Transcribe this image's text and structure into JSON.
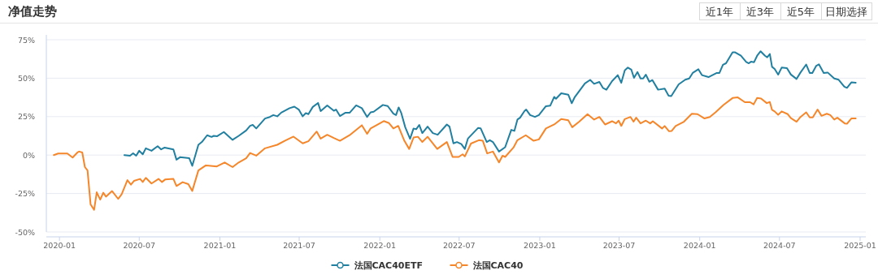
{
  "chart_data": {
    "type": "line",
    "title": "净值走势",
    "annotations": [
      "近1年",
      "近3年",
      "近5年",
      "日期选择"
    ],
    "xlim": [
      "2019-12-02",
      "2025-01-14"
    ],
    "xticks": [
      "2020-01",
      "2020-07",
      "2021-01",
      "2021-07",
      "2022-01",
      "2022-07",
      "2023-01",
      "2023-07",
      "2024-01",
      "2024-07",
      "2025-01"
    ],
    "ylim": [
      -50,
      75
    ],
    "yticks": [
      {
        "value": -50,
        "label": "-50%"
      },
      {
        "value": -25,
        "label": "-25%"
      },
      {
        "value": 0,
        "label": "0%"
      },
      {
        "value": 25,
        "label": "25%"
      },
      {
        "value": 50,
        "label": "50%"
      },
      {
        "value": 75,
        "label": "75%"
      }
    ],
    "grid": "y",
    "legend": "bottom",
    "marker": "none",
    "line_style": "solid",
    "series": [
      {
        "name": "法国CAC40ETF",
        "color": "#217fa0",
        "x": [
          "2020-05-28",
          "2020-06-10",
          "2020-06-17",
          "2020-06-24",
          "2020-07-01",
          "2020-07-09",
          "2020-07-16",
          "2020-07-29",
          "2020-08-12",
          "2020-08-20",
          "2020-08-28",
          "2020-09-17",
          "2020-09-24",
          "2020-10-02",
          "2020-10-23",
          "2020-10-30",
          "2020-11-13",
          "2020-11-21",
          "2020-12-03",
          "2020-12-13",
          "2020-12-18",
          "2020-12-26",
          "2021-01-10",
          "2021-01-30",
          "2021-02-13",
          "2021-03-02",
          "2021-03-11",
          "2021-03-17",
          "2021-03-25",
          "2021-04-14",
          "2021-04-25",
          "2021-05-03",
          "2021-05-12",
          "2021-05-21",
          "2021-06-09",
          "2021-06-20",
          "2021-06-30",
          "2021-07-09",
          "2021-07-16",
          "2021-07-22",
          "2021-08-01",
          "2021-08-13",
          "2021-08-19",
          "2021-09-03",
          "2021-09-18",
          "2021-09-23",
          "2021-10-02",
          "2021-10-14",
          "2021-10-24",
          "2021-11-08",
          "2021-11-21",
          "2021-12-03",
          "2021-12-11",
          "2021-12-18",
          "2022-01-08",
          "2022-01-19",
          "2022-02-01",
          "2022-02-07",
          "2022-02-13",
          "2022-02-19",
          "2022-02-28",
          "2022-03-11",
          "2022-03-19",
          "2022-03-25",
          "2022-04-01",
          "2022-04-08",
          "2022-04-20",
          "2022-05-02",
          "2022-05-13",
          "2022-06-03",
          "2022-06-09",
          "2022-06-18",
          "2022-06-26",
          "2022-07-06",
          "2022-07-14",
          "2022-07-21",
          "2022-08-13",
          "2022-08-19",
          "2022-09-02",
          "2022-09-09",
          "2022-09-16",
          "2022-09-30",
          "2022-10-14",
          "2022-10-28",
          "2022-11-04",
          "2022-11-11",
          "2022-11-17",
          "2022-11-27",
          "2022-12-01",
          "2022-12-10",
          "2022-12-21",
          "2022-12-30",
          "2023-01-15",
          "2023-01-25",
          "2023-02-03",
          "2023-02-07",
          "2023-02-19",
          "2023-03-07",
          "2023-03-15",
          "2023-03-22",
          "2023-04-14",
          "2023-04-26",
          "2023-05-05",
          "2023-05-17",
          "2023-05-25",
          "2023-06-02",
          "2023-06-15",
          "2023-06-28",
          "2023-07-06",
          "2023-07-14",
          "2023-07-21",
          "2023-07-29",
          "2023-08-04",
          "2023-08-12",
          "2023-08-19",
          "2023-08-25",
          "2023-08-31",
          "2023-09-08",
          "2023-09-15",
          "2023-09-28",
          "2023-10-13",
          "2023-10-22",
          "2023-10-28",
          "2023-11-14",
          "2023-11-29",
          "2023-12-08",
          "2023-12-16",
          "2023-12-29",
          "2024-01-06",
          "2024-01-21",
          "2024-02-09",
          "2024-02-15",
          "2024-02-23",
          "2024-03-01",
          "2024-03-16",
          "2024-03-22",
          "2024-04-04",
          "2024-04-16",
          "2024-04-22",
          "2024-04-27",
          "2024-05-04",
          "2024-05-11",
          "2024-05-19",
          "2024-05-29",
          "2024-06-03",
          "2024-06-09",
          "2024-06-14",
          "2024-06-20",
          "2024-06-28",
          "2024-07-06",
          "2024-07-18",
          "2024-07-27",
          "2024-08-09",
          "2024-08-18",
          "2024-08-31",
          "2024-09-08",
          "2024-09-14",
          "2024-09-23",
          "2024-09-29",
          "2024-10-10",
          "2024-10-19",
          "2024-11-03",
          "2024-11-13",
          "2024-11-26",
          "2024-12-02",
          "2024-12-12",
          "2024-12-22"
        ],
        "values": [
          0,
          -0.4,
          1.2,
          -0.4,
          2.8,
          0.5,
          4.4,
          2.8,
          5.8,
          3.7,
          4.9,
          3.7,
          -3,
          -1.4,
          -2,
          -7,
          6.7,
          8.5,
          12.9,
          11.8,
          12.5,
          12.3,
          15,
          9.9,
          12.5,
          16,
          19,
          19.6,
          17.3,
          23.8,
          24.8,
          26,
          25.2,
          27.6,
          30.5,
          31.5,
          29.6,
          25.2,
          27.3,
          26.6,
          31.3,
          33.9,
          28.6,
          32.3,
          28.8,
          29.6,
          25.4,
          27.5,
          27.5,
          32.3,
          30.5,
          24.8,
          27.8,
          28.2,
          32.6,
          31.9,
          26.9,
          26,
          31,
          27.3,
          18.1,
          10.6,
          17.3,
          16.8,
          19.6,
          14.3,
          18.5,
          14.3,
          13.2,
          19.9,
          18.5,
          7.6,
          8.5,
          7.2,
          4,
          10.7,
          17.6,
          17.4,
          8.5,
          9.7,
          8.5,
          2.3,
          5.1,
          16.4,
          15.7,
          23.1,
          24.3,
          28.6,
          29.6,
          26,
          24.8,
          26,
          31.8,
          32.2,
          37.8,
          36.6,
          40.2,
          39.3,
          33.7,
          37.8,
          46.6,
          48.9,
          46.3,
          47.6,
          43.7,
          42.5,
          48.1,
          52,
          47,
          55.1,
          56.9,
          55.5,
          50.2,
          54,
          49.8,
          49.8,
          52.3,
          47.7,
          48.8,
          42.5,
          43.2,
          38.6,
          38.3,
          46,
          49,
          49.8,
          53.4,
          55.8,
          52,
          50.7,
          53.4,
          53.4,
          58.7,
          59.7,
          66.8,
          66.8,
          64.6,
          60.6,
          59.7,
          60.7,
          60.4,
          64.6,
          67.5,
          64.6,
          63.6,
          65.7,
          57.4,
          56,
          52.3,
          56.9,
          56.5,
          52.4,
          49.5,
          53.7,
          58.9,
          53.4,
          53.4,
          58.1,
          59,
          53.4,
          53.7,
          49.8,
          49,
          44.5,
          43.7,
          47.3,
          47.1
        ]
      },
      {
        "name": "法国CAC40",
        "color": "#f5862a",
        "x": [
          "2019-12-19",
          "2019-12-29",
          "2020-01-19",
          "2020-01-31",
          "2020-02-11",
          "2020-02-15",
          "2020-02-22",
          "2020-02-28",
          "2020-03-05",
          "2020-03-12",
          "2020-03-20",
          "2020-03-26",
          "2020-04-03",
          "2020-04-10",
          "2020-04-16",
          "2020-04-30",
          "2020-05-14",
          "2020-05-22",
          "2020-06-04",
          "2020-06-12",
          "2020-06-19",
          "2020-07-03",
          "2020-07-09",
          "2020-07-16",
          "2020-07-29",
          "2020-08-14",
          "2020-08-22",
          "2020-08-29",
          "2020-09-17",
          "2020-09-24",
          "2020-10-08",
          "2020-10-21",
          "2020-10-30",
          "2020-11-13",
          "2020-11-30",
          "2020-12-25",
          "2021-01-12",
          "2021-01-30",
          "2021-02-13",
          "2021-03-02",
          "2021-03-11",
          "2021-03-25",
          "2021-04-14",
          "2021-05-12",
          "2021-05-30",
          "2021-06-18",
          "2021-07-09",
          "2021-07-22",
          "2021-08-10",
          "2021-08-19",
          "2021-09-03",
          "2021-09-18",
          "2021-10-02",
          "2021-10-24",
          "2021-11-21",
          "2021-12-03",
          "2021-12-11",
          "2022-01-10",
          "2022-01-22",
          "2022-02-01",
          "2022-02-12",
          "2022-02-26",
          "2022-03-09",
          "2022-03-19",
          "2022-03-29",
          "2022-04-08",
          "2022-04-20",
          "2022-05-12",
          "2022-06-03",
          "2022-06-16",
          "2022-06-30",
          "2022-07-09",
          "2022-07-14",
          "2022-07-28",
          "2022-08-15",
          "2022-08-24",
          "2022-09-03",
          "2022-09-16",
          "2022-09-30",
          "2022-10-08",
          "2022-10-14",
          "2022-11-02",
          "2022-11-11",
          "2022-11-30",
          "2022-12-18",
          "2022-12-30",
          "2023-01-15",
          "2023-02-03",
          "2023-02-19",
          "2023-03-07",
          "2023-03-16",
          "2023-04-01",
          "2023-04-20",
          "2023-05-05",
          "2023-05-17",
          "2023-05-30",
          "2023-06-15",
          "2023-06-24",
          "2023-06-30",
          "2023-07-06",
          "2023-07-14",
          "2023-07-27",
          "2023-08-03",
          "2023-08-09",
          "2023-08-19",
          "2023-08-31",
          "2023-09-10",
          "2023-09-16",
          "2023-10-07",
          "2023-10-13",
          "2023-10-23",
          "2023-10-29",
          "2023-11-07",
          "2023-11-26",
          "2023-12-14",
          "2023-12-27",
          "2024-01-12",
          "2024-01-24",
          "2024-02-06",
          "2024-02-24",
          "2024-03-16",
          "2024-03-28",
          "2024-04-13",
          "2024-04-25",
          "2024-05-03",
          "2024-05-11",
          "2024-05-20",
          "2024-06-02",
          "2024-06-09",
          "2024-06-14",
          "2024-06-20",
          "2024-06-28",
          "2024-07-06",
          "2024-07-20",
          "2024-07-27",
          "2024-08-09",
          "2024-08-18",
          "2024-08-31",
          "2024-09-08",
          "2024-09-15",
          "2024-09-26",
          "2024-10-05",
          "2024-10-17",
          "2024-10-25",
          "2024-11-03",
          "2024-11-10",
          "2024-11-27",
          "2024-12-02",
          "2024-12-12",
          "2024-12-22"
        ],
        "values": [
          0,
          1,
          1,
          -1.6,
          1.7,
          2.3,
          1.7,
          -7.8,
          -10,
          -32.1,
          -35.6,
          -24.2,
          -29,
          -24.5,
          -27,
          -23.4,
          -28.5,
          -25.4,
          -16.3,
          -19.2,
          -16.8,
          -15.5,
          -17.5,
          -14.8,
          -18.5,
          -15.5,
          -17.5,
          -15.9,
          -15.5,
          -20.1,
          -17.6,
          -18.9,
          -23.3,
          -10,
          -6.7,
          -7.4,
          -4.8,
          -7.8,
          -4.8,
          -2.1,
          1.4,
          -0.4,
          4.4,
          6.7,
          9.4,
          12,
          7.6,
          9,
          15.3,
          10.7,
          13.2,
          11.1,
          9.3,
          12.9,
          19.4,
          13.8,
          17.3,
          22.1,
          20.8,
          17.3,
          19,
          9.3,
          4,
          11.4,
          11.9,
          8.5,
          11.9,
          4,
          8.5,
          -1.2,
          -1.2,
          0.5,
          -0.9,
          7.5,
          9.7,
          9.3,
          1.1,
          2.3,
          -4.8,
          -0.4,
          -1.2,
          4.9,
          9.7,
          12.9,
          9.3,
          10.2,
          17.3,
          19.9,
          23.4,
          22.6,
          18.1,
          21.7,
          26.6,
          23.1,
          24.8,
          19.9,
          22,
          20.6,
          22.4,
          19,
          23.4,
          24.8,
          21.7,
          24.3,
          20.6,
          22.4,
          20.6,
          22,
          17.3,
          18.9,
          15.5,
          15.7,
          18.9,
          21.7,
          26.9,
          26.6,
          23.8,
          24.8,
          27.8,
          32.5,
          37.1,
          37.5,
          34.4,
          34.4,
          33,
          37.1,
          36.8,
          33.8,
          34.5,
          29.4,
          28.4,
          26.2,
          28.4,
          26.6,
          24,
          21.7,
          24.8,
          27.8,
          24.5,
          24.5,
          29.6,
          25.5,
          26.9,
          26,
          23.1,
          24.3,
          20.6,
          20.4,
          23.8,
          23.8
        ]
      }
    ]
  }
}
